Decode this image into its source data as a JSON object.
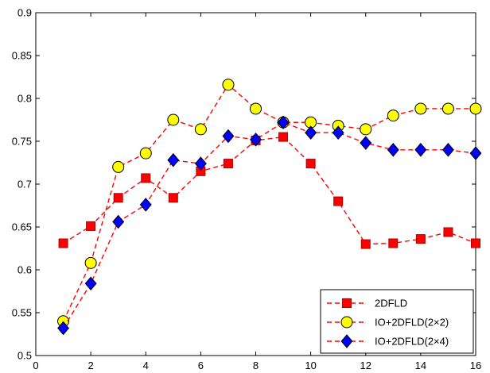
{
  "chart_data": {
    "type": "line",
    "title": "",
    "xlabel": "",
    "ylabel": "",
    "xlim": [
      0,
      16
    ],
    "ylim": [
      0.5,
      0.9
    ],
    "xticks": [
      0,
      2,
      4,
      6,
      8,
      10,
      12,
      14,
      16
    ],
    "yticks": [
      0.5,
      0.55,
      0.6,
      0.65,
      0.7,
      0.75,
      0.8,
      0.85,
      0.9
    ],
    "ytick_labels": [
      "0.5",
      "0.55",
      "0.6",
      "0.65",
      "0.7",
      "0.75",
      "0.8",
      "0.85",
      "0.9"
    ],
    "grid": false,
    "legend_position": "bottom-right",
    "x": [
      1,
      2,
      3,
      4,
      5,
      6,
      7,
      8,
      9,
      10,
      11,
      12,
      13,
      14,
      15,
      16
    ],
    "series": [
      {
        "name": "2DFLD",
        "marker": "square",
        "line_color": "#ff0000",
        "marker_fill": "#ff0000",
        "marker_edge": "#aa0000",
        "values": [
          0.631,
          0.651,
          0.684,
          0.707,
          0.684,
          0.715,
          0.724,
          0.751,
          0.755,
          0.724,
          0.68,
          0.63,
          0.631,
          0.636,
          0.644,
          0.631
        ]
      },
      {
        "name": "IO+2DFLD(2×2)",
        "marker": "circle",
        "line_color": "#ff0000",
        "marker_fill": "#ffff00",
        "marker_edge": "#000000",
        "values": [
          0.54,
          0.608,
          0.72,
          0.736,
          0.775,
          0.764,
          0.816,
          0.788,
          0.772,
          0.772,
          0.768,
          0.764,
          0.78,
          0.788,
          0.788,
          0.788
        ]
      },
      {
        "name": "IO+2DFLD(2×4)",
        "marker": "diamond",
        "line_color": "#ff0000",
        "marker_fill": "#0000ff",
        "marker_edge": "#000000",
        "values": [
          0.532,
          0.584,
          0.656,
          0.676,
          0.728,
          0.724,
          0.756,
          0.752,
          0.772,
          0.76,
          0.76,
          0.748,
          0.74,
          0.74,
          0.74,
          0.736
        ]
      }
    ]
  }
}
